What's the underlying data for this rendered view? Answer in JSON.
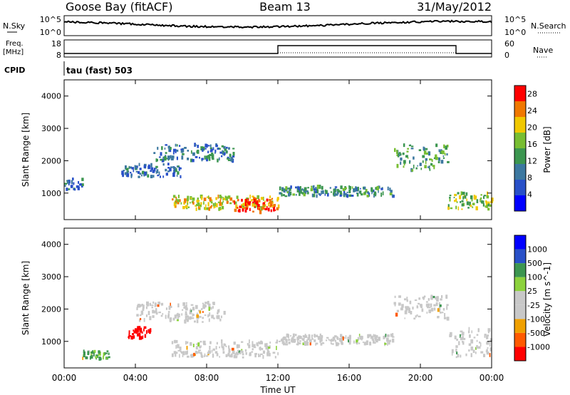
{
  "header": {
    "station": "Goose Bay (fitACF)",
    "beam": "Beam 13",
    "date": "31/May/2012"
  },
  "top_panels": {
    "nsky_label": "N.Sky",
    "nsky_tick_high": "10^5",
    "nsky_tick_low": "10^0",
    "nsearch_label": "N.Search",
    "nsearch_tick_high": "10^5",
    "nsearch_tick_low": "10^0",
    "freq_label_line1": "Freq.",
    "freq_label_line2": "[MHz]",
    "freq_tick_high": "18",
    "freq_tick_low": "8",
    "nave_label": "Nave",
    "nave_tick_high": "60",
    "nave_tick_low": "0",
    "cpid_label": "CPID",
    "cpid_text": "tau (fast) 503"
  },
  "colors": {
    "power_scale": [
      "#0000ff",
      "#2850c8",
      "#3c78a0",
      "#3c9650",
      "#78be32",
      "#f0c800",
      "#f07800",
      "#ff0000"
    ],
    "velocity_scale": [
      "#ff0000",
      "#ff5a00",
      "#f0a000",
      "#c8c8c8",
      "#c8c8c8",
      "#8cd23c",
      "#3c9650",
      "#2850c8",
      "#0000ff"
    ],
    "ground_scatter": "#c8c8c8"
  },
  "chart_data": [
    {
      "type": "heatmap",
      "title": "",
      "xlabel": "",
      "ylabel": "Slant Range [km]",
      "xlim": [
        "00:00",
        "24:00"
      ],
      "x_ticks": [],
      "ylim": [
        180,
        4500
      ],
      "y_ticks": [
        "1000",
        "2000",
        "3000",
        "4000"
      ],
      "colorbar": {
        "label": "Power [dB]",
        "ticks": [
          "4",
          "8",
          "12",
          "16",
          "20",
          "24",
          "28"
        ],
        "range": [
          0,
          30
        ]
      },
      "bands": [
        {
          "hours": [
            0,
            1
          ],
          "range_km": [
            1100,
            1450
          ],
          "value": 8
        },
        {
          "hours": [
            3.2,
            6.5
          ],
          "range_km": [
            1500,
            1900
          ],
          "value": 9
        },
        {
          "hours": [
            5.0,
            9.5
          ],
          "range_km": [
            2000,
            2500
          ],
          "value": 10
        },
        {
          "hours": [
            6.0,
            12.0
          ],
          "range_km": [
            500,
            900
          ],
          "value": 20
        },
        {
          "hours": [
            9.5,
            11.8
          ],
          "range_km": [
            400,
            800
          ],
          "value": 27
        },
        {
          "hours": [
            12.0,
            18.5
          ],
          "range_km": [
            900,
            1200
          ],
          "value": 11
        },
        {
          "hours": [
            18.5,
            21.5
          ],
          "range_km": [
            1700,
            2500
          ],
          "value": 13
        },
        {
          "hours": [
            21.5,
            24.0
          ],
          "range_km": [
            500,
            1000
          ],
          "value": 17
        }
      ]
    },
    {
      "type": "heatmap",
      "title": "",
      "xlabel": "Time UT",
      "ylabel": "Slant Range [km]",
      "xlim": [
        "00:00",
        "24:00"
      ],
      "x_ticks": [
        "00:00",
        "04:00",
        "08:00",
        "12:00",
        "16:00",
        "20:00",
        "00:00"
      ],
      "ylim": [
        180,
        4500
      ],
      "y_ticks": [
        "1000",
        "2000",
        "3000",
        "4000"
      ],
      "colorbar": {
        "label": "Velocity [m s^-1]",
        "ticks": [
          "1000",
          "500",
          "100",
          "25",
          "-25",
          "-100",
          "-500",
          "-1000"
        ]
      },
      "bands": [
        {
          "hours": [
            3.5,
            4.8
          ],
          "range_km": [
            1100,
            1450
          ],
          "value": -800
        },
        {
          "hours": [
            4.0,
            9.0
          ],
          "range_km": [
            1600,
            2200
          ],
          "value": 0
        },
        {
          "hours": [
            6.0,
            12.0
          ],
          "range_km": [
            500,
            1000
          ],
          "value": 0
        },
        {
          "hours": [
            12.0,
            18.5
          ],
          "range_km": [
            900,
            1200
          ],
          "value": 0
        },
        {
          "hours": [
            18.5,
            21.5
          ],
          "range_km": [
            1700,
            2400
          ],
          "value": 0
        },
        {
          "hours": [
            21.5,
            24.0
          ],
          "range_km": [
            500,
            1400
          ],
          "value": 0
        },
        {
          "hours": [
            1.0,
            2.5
          ],
          "range_km": [
            450,
            700
          ],
          "value": 100
        }
      ]
    }
  ]
}
